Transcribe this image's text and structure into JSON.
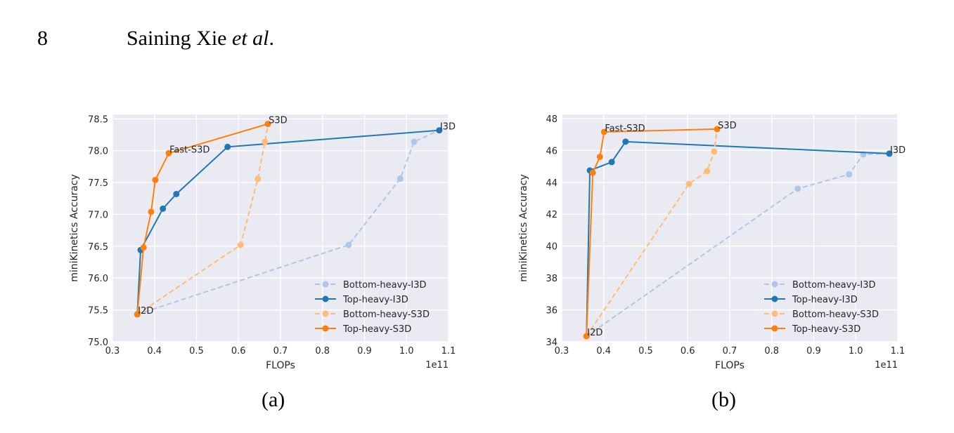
{
  "header": {
    "page_number": "8",
    "authors": "Saining Xie",
    "et_al": "et al",
    "period": "."
  },
  "captions": [
    "(a)",
    "(b)"
  ],
  "chart_data": [
    {
      "type": "line",
      "xlabel": "FLOPs",
      "ylabel": "miniKinetics Accuracy",
      "x_offset_label": "1e11",
      "xlim": [
        0.3,
        1.1
      ],
      "ylim": [
        75.0,
        78.57
      ],
      "xticks": [
        0.3,
        0.4,
        0.5,
        0.6,
        0.7,
        0.8,
        0.9,
        1.0,
        1.1
      ],
      "xtick_labels": [
        "0.3",
        "0.4",
        "0.5",
        "0.6",
        "0.7",
        "0.8",
        "0.9",
        "1.0",
        "1.1"
      ],
      "yticks": [
        75.0,
        75.5,
        76.0,
        76.5,
        77.0,
        77.5,
        78.0,
        78.5
      ],
      "ytick_labels": [
        "75.0",
        "75.5",
        "76.0",
        "76.5",
        "77.0",
        "77.5",
        "78.0",
        "78.5"
      ],
      "grid": true,
      "background": "#EAEAF2",
      "legend_position": "lower-right",
      "series": [
        {
          "name": "Bottom-heavy-I3D",
          "color": "#AEC7E8",
          "dashed": true,
          "x": [
            0.359,
            0.862,
            0.985,
            1.018,
            1.078
          ],
          "y": [
            75.43,
            76.52,
            77.56,
            78.14,
            78.32
          ]
        },
        {
          "name": "Top-heavy-I3D",
          "color": "#1F77B4",
          "dashed": false,
          "x": [
            0.359,
            0.367,
            0.42,
            0.452,
            0.574,
            1.078
          ],
          "y": [
            75.43,
            76.44,
            77.09,
            77.32,
            78.06,
            78.32
          ]
        },
        {
          "name": "Bottom-heavy-S3D",
          "color": "#FFBB78",
          "dashed": true,
          "x": [
            0.359,
            0.605,
            0.646,
            0.663,
            0.67
          ],
          "y": [
            75.43,
            76.52,
            77.56,
            78.14,
            78.42
          ]
        },
        {
          "name": "Top-heavy-S3D",
          "color": "#FF7F0E",
          "dashed": false,
          "x": [
            0.359,
            0.374,
            0.392,
            0.402,
            0.434,
            0.67
          ],
          "y": [
            75.43,
            76.48,
            77.04,
            77.54,
            77.96,
            78.42
          ]
        }
      ],
      "annotations": [
        {
          "text": "I2D",
          "x": 0.359,
          "y": 75.43
        },
        {
          "text": "Fast-S3D",
          "x": 0.434,
          "y": 77.96
        },
        {
          "text": "S3D",
          "x": 0.67,
          "y": 78.42
        },
        {
          "text": "I3D",
          "x": 1.078,
          "y": 78.32
        }
      ]
    },
    {
      "type": "line",
      "xlabel": "FLOPs",
      "ylabel": "miniKinetics Accuracy",
      "x_offset_label": "1e11",
      "xlim": [
        0.3,
        1.1
      ],
      "ylim": [
        34,
        48.26
      ],
      "xticks": [
        0.3,
        0.4,
        0.5,
        0.6,
        0.7,
        0.8,
        0.9,
        1.0,
        1.1
      ],
      "xtick_labels": [
        "0.3",
        "0.4",
        "0.5",
        "0.6",
        "0.7",
        "0.8",
        "0.9",
        "1.0",
        "1.1"
      ],
      "yticks": [
        34,
        36,
        38,
        40,
        42,
        44,
        46,
        48
      ],
      "ytick_labels": [
        "34",
        "36",
        "38",
        "40",
        "42",
        "44",
        "46",
        "48"
      ],
      "grid": true,
      "background": "#EAEAF2",
      "legend_position": "lower-right",
      "series": [
        {
          "name": "Bottom-heavy-I3D",
          "color": "#AEC7E8",
          "dashed": true,
          "x": [
            0.359,
            0.862,
            0.984,
            1.018,
            1.08
          ],
          "y": [
            34.35,
            43.6,
            44.5,
            45.75,
            45.8
          ]
        },
        {
          "name": "Top-heavy-I3D",
          "color": "#1F77B4",
          "dashed": false,
          "x": [
            0.359,
            0.367,
            0.419,
            0.452,
            1.08
          ],
          "y": [
            34.35,
            44.74,
            45.27,
            46.55,
            45.8
          ]
        },
        {
          "name": "Bottom-heavy-S3D",
          "color": "#FFBB78",
          "dashed": true,
          "x": [
            0.359,
            0.603,
            0.646,
            0.663,
            0.67
          ],
          "y": [
            34.35,
            43.9,
            44.7,
            45.93,
            47.34
          ]
        },
        {
          "name": "Top-heavy-S3D",
          "color": "#FF7F0E",
          "dashed": false,
          "x": [
            0.359,
            0.374,
            0.391,
            0.401,
            0.67
          ],
          "y": [
            34.35,
            44.6,
            45.6,
            47.16,
            47.34
          ]
        }
      ],
      "annotations": [
        {
          "text": "I2D",
          "x": 0.359,
          "y": 34.35
        },
        {
          "text": "Fast-S3D",
          "x": 0.401,
          "y": 47.16
        },
        {
          "text": "S3D",
          "x": 0.67,
          "y": 47.34
        },
        {
          "text": "I3D",
          "x": 1.08,
          "y": 45.8
        }
      ]
    }
  ]
}
